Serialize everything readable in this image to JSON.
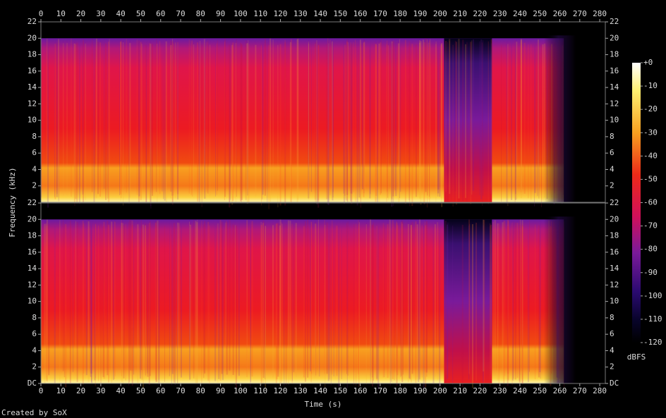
{
  "chart_data": {
    "type": "spectrogram",
    "xlabel": "Time (s)",
    "ylabel": "Frequency (kHz)",
    "xlim": [
      0,
      282.8
    ],
    "xticks": [
      0,
      10,
      20,
      30,
      40,
      50,
      60,
      70,
      80,
      90,
      100,
      110,
      120,
      130,
      140,
      150,
      160,
      170,
      180,
      190,
      200,
      210,
      220,
      230,
      240,
      250,
      260,
      270,
      280
    ],
    "channels": [
      {
        "ylim": [
          0,
          22
        ],
        "yticks": [
          2,
          4,
          6,
          8,
          10,
          12,
          14,
          16,
          18,
          20,
          22
        ]
      },
      {
        "ylim": [
          0,
          22
        ],
        "yticks": [
          {
            "value": 0,
            "label": "DC"
          },
          2,
          4,
          6,
          8,
          10,
          12,
          14,
          16,
          18,
          20,
          22
        ]
      }
    ],
    "colorbar": {
      "label": "dBFS",
      "lim": [
        -120,
        0
      ],
      "ticks": [
        {
          "value": 0,
          "label": "+0"
        },
        -10,
        -20,
        -30,
        -40,
        -50,
        -60,
        -70,
        -80,
        -90,
        -100,
        -110,
        -120
      ]
    },
    "footer": "Created by SoX"
  }
}
